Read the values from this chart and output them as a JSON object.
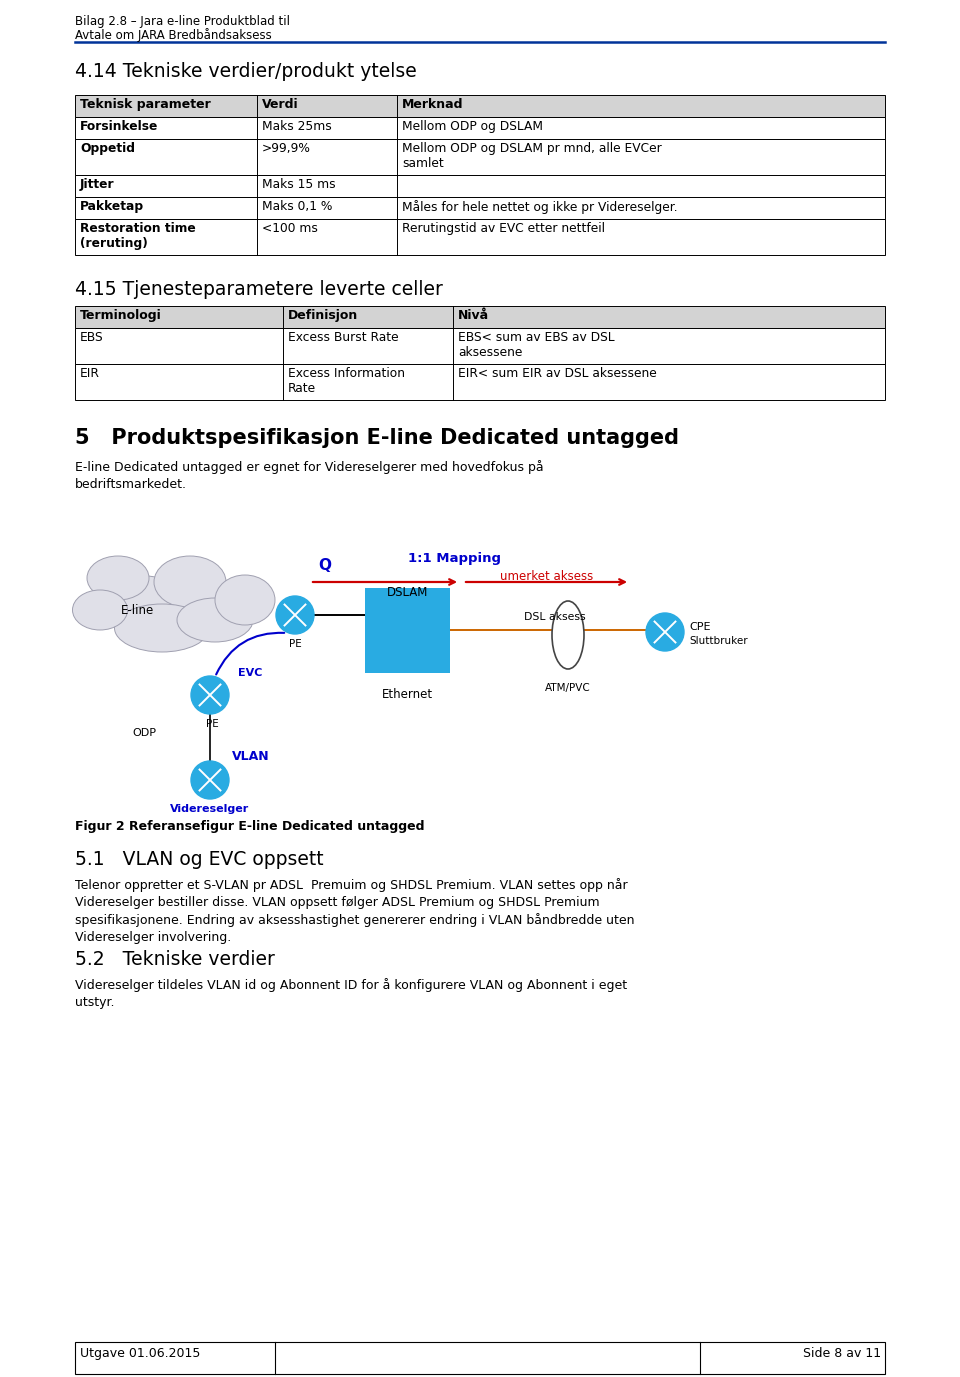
{
  "bg_color": "#ffffff",
  "header_line1": "Bilag 2.8 – Jara e-line Produktblad til",
  "header_line2": "Avtale om JARA Bredbåndsaksess",
  "section414_title": "4.14 Tekniske verdier/produkt ytelse",
  "table1_headers": [
    "Teknisk parameter",
    "Verdi",
    "Merknad"
  ],
  "section415_title": "4.15 Tjenesteparametere leverte celler",
  "table2_headers": [
    "Terminologi",
    "Definisjon",
    "Nivå"
  ],
  "section5_title": "5   Produktspesifikasjon E-line Dedicated untagged",
  "section5_body": "E-line Dedicated untagged er egnet for Videreselgerer med hovedfokus på\nbedriftsmarkedet.",
  "fig_caption": "Figur 2 Referansefigur E-line Dedicated untagged",
  "section51_title": "5.1   VLAN og EVC oppsett",
  "section51_body": "Telenor oppretter et S-VLAN pr ADSL  Premuim og SHDSL Premium. VLAN settes opp når\nVidereselger bestiller disse. VLAN oppsett følger ADSL Premium og SHDSL Premium\nspesifikasjonene. Endring av aksesshastighet genererer endring i VLAN båndbredde uten\nVidereselger involvering.",
  "section52_title": "5.2   Tekniske verdier",
  "section52_body": "Videreselger tildeles VLAN id og Abonnent ID for å konfigurere VLAN og Abonnent i eget\nutstyr.",
  "footer_left": "Utgave 01.06.2015",
  "footer_right": "Side 8 av 11",
  "header_blue": "#003399",
  "table_header_bg": "#d3d3d3",
  "table_border": "#000000",
  "blue_label": "#0000cc",
  "red_color": "#cc0000",
  "network_blue": "#29ABE2",
  "dslam_blue": "#29ABE2",
  "orange_line": "#cc6600",
  "cloud_fill": "#e0e0e8",
  "cloud_edge": "#a0a0b0"
}
